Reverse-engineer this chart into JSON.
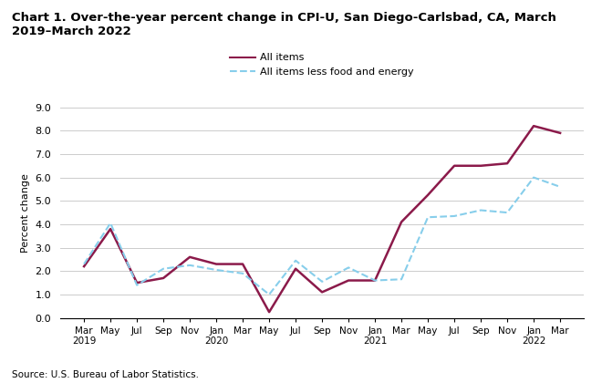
{
  "title": "Chart 1. Over-the-year percent change in CPI-U, San Diego-Carlsbad, CA, March\n2019–March 2022",
  "ylabel": "Percent change",
  "source": "Source: U.S. Bureau of Labor Statistics.",
  "tick_labels": [
    "Mar\n2019",
    "May",
    "Jul",
    "Sep",
    "Nov",
    "Jan\n2020",
    "Mar",
    "May",
    "Jul",
    "Sep",
    "Nov",
    "Jan\n2021",
    "Mar",
    "May",
    "Jul",
    "Sep",
    "Nov",
    "Jan\n2022",
    "Mar"
  ],
  "ylim": [
    0.0,
    9.0
  ],
  "yticks": [
    0.0,
    1.0,
    2.0,
    3.0,
    4.0,
    5.0,
    6.0,
    7.0,
    8.0,
    9.0
  ],
  "all_items": [
    2.2,
    3.8,
    1.5,
    1.7,
    2.6,
    2.3,
    2.3,
    0.25,
    2.1,
    1.1,
    1.6,
    1.6,
    4.1,
    5.25,
    6.5,
    6.5,
    6.6,
    8.2,
    7.9
  ],
  "all_items_less": [
    2.3,
    4.05,
    1.4,
    2.1,
    2.25,
    2.05,
    1.9,
    1.0,
    2.45,
    1.55,
    2.15,
    1.6,
    1.65,
    4.3,
    4.35,
    4.6,
    4.5,
    6.0,
    5.6
  ],
  "all_items_color": "#8B1A4A",
  "all_items_less_color": "#87CEEB",
  "legend_all_items": "All items",
  "legend_all_items_less": "All items less food and energy",
  "background_color": "#ffffff"
}
